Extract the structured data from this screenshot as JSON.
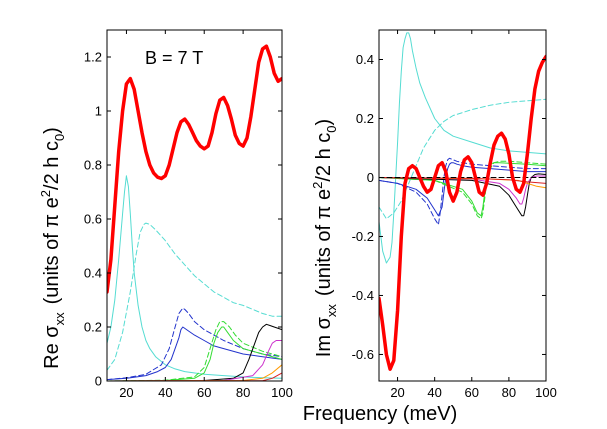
{
  "chart_data": [
    {
      "id": "re",
      "type": "line",
      "annotation": "B = 7 T",
      "ylabel_prefix": "Re σ",
      "ylabel_sub": "xx",
      "ylabel_units_a": "(units of π e",
      "ylabel_units_sup": "2",
      "ylabel_units_b": "/2 h c",
      "ylabel_units_sub": "0",
      "ylabel_units_c": ")",
      "xlim": [
        10,
        100
      ],
      "ylim": [
        0,
        1.3
      ],
      "xticks": [
        20,
        40,
        60,
        80,
        100
      ],
      "xtick_labels": [
        "20",
        "40",
        "60",
        "80",
        "100"
      ],
      "yticks": [
        0,
        0.2,
        0.4,
        0.6,
        0.8,
        1,
        1.2
      ],
      "ytick_labels": [
        "0",
        "0.2",
        "0.4",
        "0.6",
        "0.8",
        "1",
        "1.2"
      ],
      "series": [
        {
          "name": "total",
          "color": "#ff0000",
          "width": 3.5,
          "dash": false,
          "x": [
            10,
            12,
            14,
            16,
            18,
            20,
            22,
            24,
            26,
            28,
            30,
            32,
            34,
            36,
            38,
            40,
            42,
            44,
            46,
            48,
            50,
            52,
            54,
            56,
            58,
            60,
            62,
            64,
            66,
            68,
            70,
            72,
            74,
            76,
            78,
            80,
            82,
            84,
            86,
            88,
            90,
            92,
            94,
            96,
            98,
            100
          ],
          "y": [
            0.33,
            0.45,
            0.65,
            0.85,
            1.0,
            1.1,
            1.12,
            1.08,
            1.0,
            0.92,
            0.85,
            0.8,
            0.77,
            0.755,
            0.75,
            0.76,
            0.8,
            0.86,
            0.92,
            0.96,
            0.97,
            0.95,
            0.92,
            0.89,
            0.87,
            0.86,
            0.87,
            0.92,
            0.99,
            1.04,
            1.05,
            1.02,
            0.97,
            0.91,
            0.88,
            0.87,
            0.9,
            0.98,
            1.08,
            1.18,
            1.23,
            1.24,
            1.2,
            1.14,
            1.11,
            1.12
          ]
        },
        {
          "name": "cyan-solid",
          "color": "#55dcd2",
          "width": 1,
          "dash": false,
          "x": [
            10,
            12,
            14,
            16,
            18,
            19,
            20,
            21,
            22,
            23,
            24,
            26,
            28,
            30,
            32,
            35,
            40,
            45,
            50,
            60,
            70,
            80,
            90,
            100
          ],
          "y": [
            0.14,
            0.2,
            0.3,
            0.45,
            0.62,
            0.7,
            0.76,
            0.72,
            0.62,
            0.5,
            0.4,
            0.28,
            0.2,
            0.15,
            0.12,
            0.09,
            0.06,
            0.045,
            0.035,
            0.025,
            0.02,
            0.015,
            0.012,
            0.01
          ]
        },
        {
          "name": "cyan-dashed",
          "color": "#55dcd2",
          "width": 1,
          "dash": true,
          "x": [
            10,
            14,
            18,
            22,
            25,
            27,
            29,
            30,
            32,
            35,
            40,
            45,
            50,
            55,
            60,
            65,
            70,
            75,
            80,
            85,
            90,
            95,
            100
          ],
          "y": [
            0.04,
            0.08,
            0.18,
            0.33,
            0.47,
            0.55,
            0.58,
            0.585,
            0.58,
            0.56,
            0.52,
            0.47,
            0.43,
            0.39,
            0.36,
            0.33,
            0.31,
            0.29,
            0.28,
            0.265,
            0.25,
            0.24,
            0.24
          ]
        },
        {
          "name": "blue-solid",
          "color": "#2233cc",
          "width": 1,
          "dash": false,
          "x": [
            10,
            20,
            30,
            36,
            40,
            43,
            45,
            47,
            48,
            49,
            50,
            52,
            55,
            60,
            65,
            70,
            80,
            90,
            100
          ],
          "y": [
            0.005,
            0.01,
            0.02,
            0.035,
            0.05,
            0.08,
            0.12,
            0.16,
            0.19,
            0.2,
            0.195,
            0.185,
            0.17,
            0.15,
            0.13,
            0.12,
            0.1,
            0.09,
            0.08
          ]
        },
        {
          "name": "blue-dashed",
          "color": "#2233cc",
          "width": 1,
          "dash": true,
          "x": [
            10,
            20,
            30,
            38,
            42,
            45,
            47,
            49,
            50,
            52,
            55,
            60,
            70,
            80,
            90,
            100
          ],
          "y": [
            0.005,
            0.012,
            0.025,
            0.06,
            0.12,
            0.2,
            0.25,
            0.27,
            0.265,
            0.25,
            0.22,
            0.19,
            0.15,
            0.12,
            0.1,
            0.09
          ]
        },
        {
          "name": "green-solid",
          "color": "#33dd33",
          "width": 1,
          "dash": false,
          "x": [
            10,
            40,
            55,
            60,
            63,
            65,
            67,
            69,
            70,
            72,
            75,
            80,
            90,
            100
          ],
          "y": [
            0.0,
            0.002,
            0.01,
            0.03,
            0.08,
            0.14,
            0.18,
            0.2,
            0.2,
            0.18,
            0.15,
            0.12,
            0.1,
            0.08
          ]
        },
        {
          "name": "green-dashed",
          "color": "#33dd33",
          "width": 1,
          "dash": true,
          "x": [
            10,
            40,
            55,
            60,
            63,
            66,
            68,
            70,
            73,
            76,
            80,
            90,
            100
          ],
          "y": [
            0.0,
            0.003,
            0.015,
            0.05,
            0.12,
            0.19,
            0.22,
            0.22,
            0.2,
            0.17,
            0.14,
            0.11,
            0.09
          ]
        },
        {
          "name": "black-solid",
          "color": "#000000",
          "width": 1,
          "dash": false,
          "x": [
            10,
            60,
            75,
            80,
            83,
            86,
            88,
            90,
            92,
            94,
            96,
            100
          ],
          "y": [
            0.0,
            0.002,
            0.01,
            0.03,
            0.08,
            0.14,
            0.18,
            0.2,
            0.21,
            0.205,
            0.2,
            0.19
          ]
        },
        {
          "name": "magenta-solid",
          "color": "#cc33cc",
          "width": 1,
          "dash": false,
          "x": [
            10,
            70,
            85,
            90,
            93,
            95,
            97,
            100
          ],
          "y": [
            0.0,
            0.002,
            0.02,
            0.06,
            0.11,
            0.14,
            0.15,
            0.15
          ]
        },
        {
          "name": "orange-solid",
          "color": "#ff9900",
          "width": 1,
          "dash": false,
          "x": [
            10,
            80,
            90,
            95,
            100
          ],
          "y": [
            0.0,
            0.002,
            0.01,
            0.03,
            0.06
          ]
        },
        {
          "name": "red-thin",
          "color": "#dd2222",
          "width": 1,
          "dash": false,
          "x": [
            10,
            90,
            95,
            100
          ],
          "y": [
            0.0,
            0.001,
            0.01,
            0.03
          ]
        }
      ]
    },
    {
      "id": "im",
      "type": "line",
      "ylabel_prefix": "Im σ",
      "ylabel_sub": "xx",
      "ylabel_units_a": "(units of π e",
      "ylabel_units_sup": "2",
      "ylabel_units_b": "/2 h c",
      "ylabel_units_sub": "0",
      "ylabel_units_c": ")",
      "xlim": [
        10,
        100
      ],
      "ylim": [
        -0.69,
        0.5
      ],
      "xticks": [
        20,
        40,
        60,
        80,
        100
      ],
      "xtick_labels": [
        "20",
        "40",
        "60",
        "80",
        "100"
      ],
      "yticks": [
        -0.6,
        -0.4,
        -0.2,
        0,
        0.2,
        0.4
      ],
      "ytick_labels": [
        "-0.6",
        "-0.4",
        "-0.2",
        "0",
        "0.2",
        "0.4"
      ],
      "series": [
        {
          "name": "total",
          "color": "#ff0000",
          "width": 3.5,
          "dash": false,
          "x": [
            10,
            12,
            14,
            16,
            18,
            20,
            22,
            24,
            26,
            28,
            30,
            32,
            34,
            36,
            38,
            40,
            42,
            44,
            46,
            48,
            50,
            52,
            54,
            56,
            58,
            60,
            62,
            64,
            66,
            68,
            70,
            72,
            74,
            76,
            78,
            80,
            82,
            84,
            86,
            88,
            90,
            92,
            94,
            96,
            98,
            100
          ],
          "y": [
            -0.41,
            -0.5,
            -0.6,
            -0.65,
            -0.62,
            -0.45,
            -0.2,
            -0.02,
            0.03,
            0.04,
            0.03,
            0.0,
            -0.03,
            -0.05,
            -0.04,
            0.0,
            0.04,
            0.05,
            0.02,
            -0.05,
            -0.08,
            -0.05,
            0.02,
            0.06,
            0.07,
            0.05,
            0.0,
            -0.05,
            -0.06,
            -0.02,
            0.05,
            0.11,
            0.14,
            0.15,
            0.13,
            0.08,
            0.0,
            -0.04,
            -0.05,
            -0.02,
            0.08,
            0.2,
            0.3,
            0.36,
            0.39,
            0.41
          ]
        },
        {
          "name": "cyan-solid",
          "color": "#55dcd2",
          "width": 1,
          "dash": false,
          "x": [
            10,
            12,
            14,
            16,
            17,
            18,
            19,
            20,
            21,
            22,
            23,
            24,
            25,
            26,
            27,
            28,
            30,
            32,
            35,
            40,
            45,
            50,
            60,
            70,
            80,
            90,
            100
          ],
          "y": [
            -0.15,
            -0.25,
            -0.29,
            -0.27,
            -0.22,
            -0.12,
            0.0,
            0.12,
            0.25,
            0.36,
            0.44,
            0.47,
            0.49,
            0.49,
            0.47,
            0.43,
            0.37,
            0.32,
            0.27,
            0.2,
            0.16,
            0.14,
            0.12,
            0.1,
            0.09,
            0.085,
            0.08
          ]
        },
        {
          "name": "cyan-dashed",
          "color": "#55dcd2",
          "width": 1,
          "dash": true,
          "x": [
            10,
            14,
            18,
            22,
            24,
            26,
            28,
            30,
            32,
            34,
            36,
            38,
            40,
            45,
            50,
            55,
            60,
            70,
            80,
            90,
            100
          ],
          "y": [
            -0.1,
            -0.14,
            -0.12,
            -0.08,
            -0.05,
            -0.02,
            0.01,
            0.04,
            0.07,
            0.1,
            0.12,
            0.14,
            0.16,
            0.19,
            0.21,
            0.22,
            0.23,
            0.245,
            0.255,
            0.26,
            0.265
          ]
        },
        {
          "name": "blue-solid",
          "color": "#2233cc",
          "width": 1,
          "dash": false,
          "x": [
            10,
            20,
            30,
            36,
            40,
            42,
            44,
            45,
            46,
            47,
            48,
            49,
            50,
            52,
            55,
            60,
            70,
            80,
            90,
            100
          ],
          "y": [
            -0.01,
            -0.02,
            -0.04,
            -0.07,
            -0.11,
            -0.13,
            -0.1,
            -0.05,
            0.0,
            0.03,
            0.045,
            0.05,
            0.05,
            0.045,
            0.04,
            0.035,
            0.03,
            0.025,
            0.02,
            0.02
          ]
        },
        {
          "name": "blue-dashed",
          "color": "#2233cc",
          "width": 1,
          "dash": true,
          "x": [
            10,
            20,
            30,
            36,
            40,
            42,
            43,
            44,
            45,
            46,
            47,
            48,
            50,
            52,
            55,
            60,
            70,
            80,
            90,
            100
          ],
          "y": [
            -0.01,
            -0.02,
            -0.05,
            -0.09,
            -0.14,
            -0.16,
            -0.12,
            -0.06,
            0.0,
            0.04,
            0.06,
            0.065,
            0.06,
            0.055,
            0.05,
            0.045,
            0.04,
            0.035,
            0.03,
            0.03
          ]
        },
        {
          "name": "green-solid",
          "color": "#33dd33",
          "width": 1,
          "dash": false,
          "x": [
            10,
            40,
            55,
            60,
            63,
            65,
            66,
            67,
            68,
            69,
            70,
            72,
            75,
            80,
            90,
            100
          ],
          "y": [
            0.0,
            -0.01,
            -0.04,
            -0.08,
            -0.12,
            -0.13,
            -0.1,
            -0.05,
            0.0,
            0.03,
            0.045,
            0.05,
            0.05,
            0.048,
            0.045,
            0.04
          ]
        },
        {
          "name": "green-dashed",
          "color": "#33dd33",
          "width": 1,
          "dash": true,
          "x": [
            10,
            40,
            55,
            60,
            63,
            65,
            66,
            67,
            68,
            70,
            72,
            75,
            80,
            90,
            100
          ],
          "y": [
            0.0,
            -0.01,
            -0.05,
            -0.09,
            -0.13,
            -0.14,
            -0.12,
            -0.07,
            -0.02,
            0.03,
            0.05,
            0.055,
            0.055,
            0.05,
            0.045
          ]
        },
        {
          "name": "black-solid",
          "color": "#000000",
          "width": 1,
          "dash": false,
          "x": [
            10,
            60,
            75,
            80,
            84,
            87,
            88,
            89,
            90,
            91,
            92,
            94,
            96,
            100
          ],
          "y": [
            0.0,
            -0.01,
            -0.03,
            -0.06,
            -0.1,
            -0.13,
            -0.13,
            -0.1,
            -0.06,
            -0.02,
            0.0,
            0.01,
            0.012,
            0.01
          ]
        },
        {
          "name": "magenta-solid",
          "color": "#cc33cc",
          "width": 1,
          "dash": false,
          "x": [
            10,
            60,
            75,
            80,
            84,
            86,
            87,
            88,
            89,
            90,
            92,
            95,
            100
          ],
          "y": [
            0.0,
            -0.005,
            -0.02,
            -0.04,
            -0.07,
            -0.09,
            -0.09,
            -0.07,
            -0.04,
            -0.02,
            0.0,
            0.005,
            0.005
          ]
        },
        {
          "name": "orange-solid",
          "color": "#ff9900",
          "width": 1,
          "dash": false,
          "x": [
            10,
            70,
            85,
            90,
            95,
            100
          ],
          "y": [
            0.0,
            -0.005,
            -0.01,
            -0.02,
            -0.03,
            -0.035
          ]
        },
        {
          "name": "red-thin",
          "color": "#dd2222",
          "width": 1,
          "dash": false,
          "x": [
            10,
            60,
            80,
            90,
            100
          ],
          "y": [
            0.0,
            -0.003,
            -0.008,
            -0.015,
            -0.02
          ]
        },
        {
          "name": "black-dashed",
          "color": "#000000",
          "width": 1,
          "dash": true,
          "x": [
            10,
            40,
            70,
            100
          ],
          "y": [
            0.0,
            0.0,
            0.0,
            0.0
          ]
        }
      ]
    }
  ],
  "shared_xlabel": "Frequency  (meV)"
}
